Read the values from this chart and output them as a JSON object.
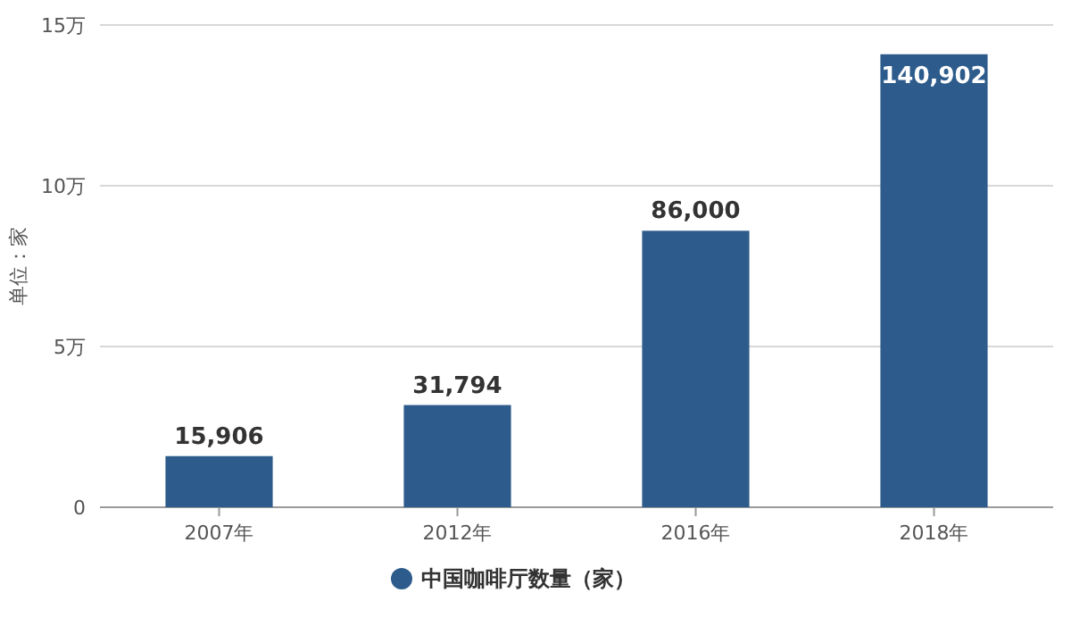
{
  "chart_data": {
    "type": "bar",
    "ylabel": "单位：家",
    "categories": [
      "2007年",
      "2012年",
      "2016年",
      "2018年"
    ],
    "series": [
      {
        "name": "中国咖啡厅数量（家）",
        "color": "#2d5b8b",
        "values": [
          1.5906,
          3.1794,
          8.6,
          14.0902
        ]
      }
    ],
    "value_labels": [
      "15,906",
      "31,794",
      "86,000",
      "140,902"
    ],
    "ylim": [
      0,
      15
    ],
    "yticks": [
      0,
      {
        "value": 5,
        "label": "5万"
      },
      {
        "value": 10,
        "label": "10万"
      },
      {
        "value": 15,
        "label": "15万"
      }
    ],
    "grid": "y",
    "legend": "bottom"
  }
}
